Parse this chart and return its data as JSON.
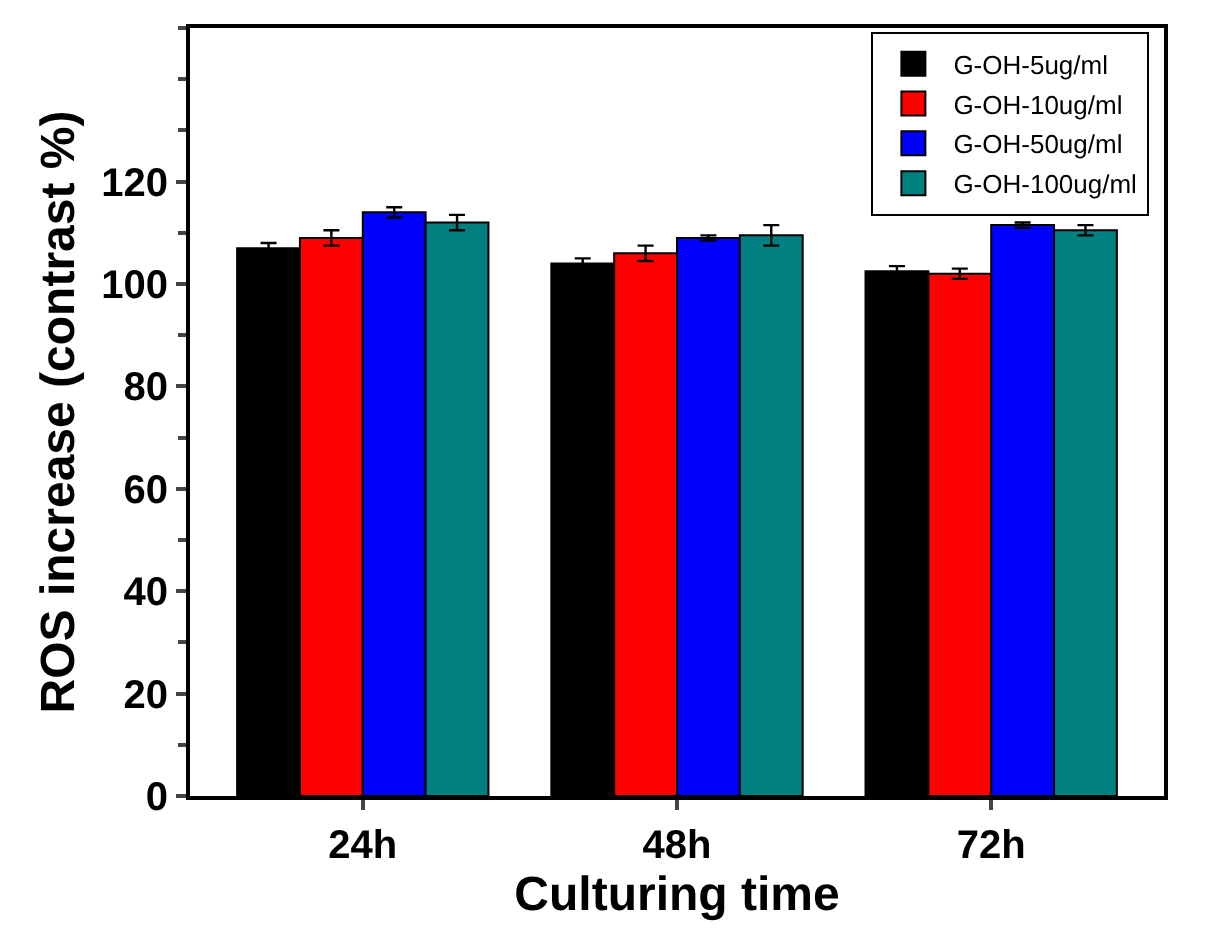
{
  "chart_data": {
    "type": "bar",
    "xlabel": "Culturing time",
    "ylabel": "ROS increase (contrast %)",
    "categories": [
      "24h",
      "48h",
      "72h"
    ],
    "series": [
      {
        "name": "G-OH-5ug/ml",
        "color": "#000000",
        "values": [
          107,
          104,
          102.5
        ],
        "errors": [
          1,
          1,
          1
        ]
      },
      {
        "name": "G-OH-10ug/ml",
        "color": "#ff0000",
        "values": [
          109,
          106,
          102
        ],
        "errors": [
          1.5,
          1.5,
          1
        ]
      },
      {
        "name": "G-OH-50ug/ml",
        "color": "#0000ff",
        "values": [
          114,
          109,
          111.5
        ],
        "errors": [
          1,
          0.5,
          0.5
        ]
      },
      {
        "name": "G-OH-100ug/ml",
        "color": "#008080",
        "values": [
          112,
          109.5,
          110.5
        ],
        "errors": [
          1.5,
          2,
          1
        ]
      }
    ],
    "ylim": [
      0,
      150
    ],
    "yticks": [
      0,
      20,
      40,
      60,
      80,
      100,
      120
    ],
    "legend": "top right"
  }
}
